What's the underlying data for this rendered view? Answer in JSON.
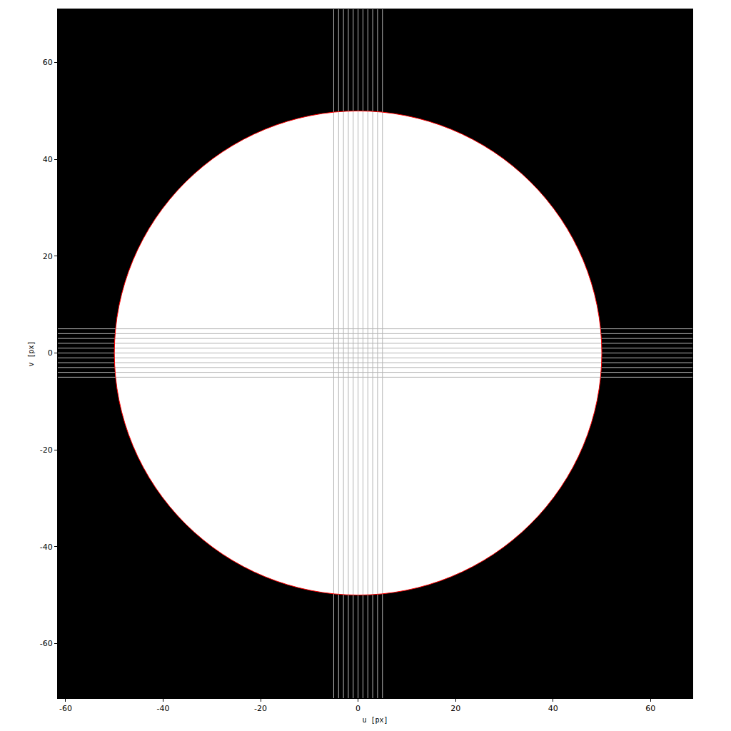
{
  "chart_data": {
    "type": "image",
    "x_label": "u [px]",
    "y_label": "v [px]",
    "xlim": [
      -61.6,
      68.6
    ],
    "ylim": [
      -71.3,
      71.0
    ],
    "xticks": [
      -60,
      -40,
      -20,
      0,
      20,
      40,
      60
    ],
    "yticks": [
      -60,
      -40,
      -20,
      0,
      20,
      40,
      60
    ],
    "grid": false,
    "disk": {
      "center": [
        0,
        0
      ],
      "radius": 50,
      "color": "#ffffff"
    },
    "contour": {
      "center": [
        0,
        0
      ],
      "radius": 50,
      "color": "#ff0000"
    },
    "u_lines": [
      -5,
      -4,
      -3,
      -2,
      -1,
      0,
      1,
      2,
      3,
      4,
      5
    ],
    "v_lines": [
      -5,
      -4,
      -3,
      -2,
      -1,
      0,
      1,
      2,
      3,
      4,
      5
    ],
    "color": "#b4b4b4"
  }
}
